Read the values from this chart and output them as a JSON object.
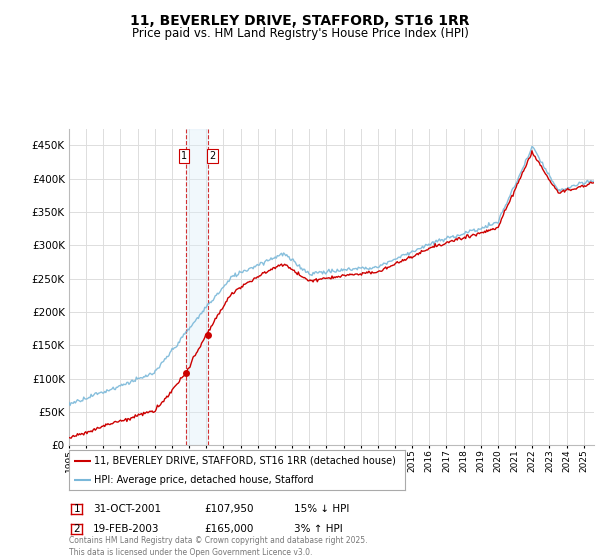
{
  "title": "11, BEVERLEY DRIVE, STAFFORD, ST16 1RR",
  "subtitle": "Price paid vs. HM Land Registry's House Price Index (HPI)",
  "legend_line1": "11, BEVERLEY DRIVE, STAFFORD, ST16 1RR (detached house)",
  "legend_line2": "HPI: Average price, detached house, Stafford",
  "footer": "Contains HM Land Registry data © Crown copyright and database right 2025.\nThis data is licensed under the Open Government Licence v3.0.",
  "sale1_date": "31-OCT-2001",
  "sale1_price": "£107,950",
  "sale1_hpi": "15% ↓ HPI",
  "sale2_date": "19-FEB-2003",
  "sale2_price": "£165,000",
  "sale2_hpi": "3% ↑ HPI",
  "hpi_line_color": "#7ab8d9",
  "price_line_color": "#cc0000",
  "sale_marker_color": "#cc0000",
  "vline_color": "#cc0000",
  "vshade_color": "#ddeef8",
  "grid_color": "#dddddd",
  "background_color": "#ffffff",
  "ylim": [
    0,
    475000
  ],
  "yticks": [
    0,
    50000,
    100000,
    150000,
    200000,
    250000,
    300000,
    350000,
    400000,
    450000
  ],
  "sale1_x": 2001.83,
  "sale2_x": 2003.13,
  "sale1_y": 107950,
  "sale2_y": 165000,
  "xmin": 1995.0,
  "xmax": 2025.6
}
